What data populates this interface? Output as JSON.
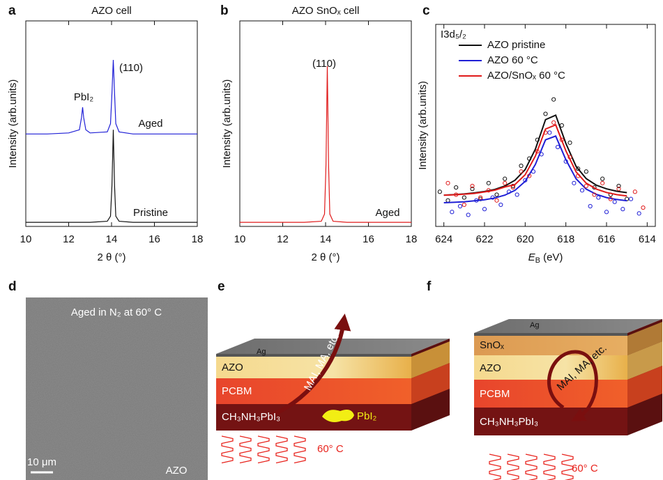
{
  "panel_labels": [
    "a",
    "b",
    "c",
    "d",
    "e",
    "f"
  ],
  "chart_data": [
    {
      "type": "line",
      "title": "AZO cell",
      "xlabel": "2 θ (°)",
      "ylabel": "Intensity (arb.units)",
      "xlim": [
        10,
        18
      ],
      "xticks": [
        10,
        12,
        14,
        16,
        18
      ],
      "ylim": [
        0,
        100
      ],
      "annotations": [
        "PbI₂",
        "(110)",
        "Aged",
        "Pristine"
      ],
      "series": [
        {
          "color": "#1f1fd6",
          "x": [
            10,
            11,
            12,
            12.5,
            12.6,
            12.65,
            12.7,
            12.8,
            13,
            13.8,
            13.95,
            14.02,
            14.08,
            14.14,
            14.2,
            14.35,
            15,
            16,
            17,
            18
          ],
          "values": [
            45,
            45,
            45.5,
            47,
            53,
            58,
            53,
            47,
            45.5,
            46,
            50,
            65,
            81,
            65,
            50,
            46,
            45,
            45,
            45,
            45
          ]
        },
        {
          "color": "#111111",
          "x": [
            10,
            11,
            12,
            13,
            13.8,
            13.95,
            14.02,
            14.08,
            14.14,
            14.2,
            14.35,
            15,
            16,
            17,
            18
          ],
          "values": [
            2,
            2,
            2,
            2,
            2.5,
            5,
            20,
            47,
            20,
            5,
            2.5,
            2,
            2,
            2,
            2
          ]
        }
      ]
    },
    {
      "type": "line",
      "title": "AZO SnOₓ cell",
      "xlabel": "2 θ (°)",
      "ylabel": "Intensity (arb.units)",
      "xlim": [
        10,
        18
      ],
      "xticks": [
        10,
        12,
        14,
        16,
        18
      ],
      "ylim": [
        0,
        100
      ],
      "annotations": [
        "(110)",
        "Aged"
      ],
      "series": [
        {
          "color": "#e01a1a",
          "x": [
            10,
            11,
            12,
            13,
            13.8,
            13.95,
            14.02,
            14.08,
            14.14,
            14.2,
            14.35,
            15,
            16,
            17,
            18
          ],
          "values": [
            2,
            2,
            2,
            2,
            2.5,
            6,
            30,
            78,
            30,
            6,
            2.5,
            2,
            2,
            2,
            2
          ]
        }
      ]
    },
    {
      "type": "scatter",
      "xlabel": [
        "E",
        "B",
        " (eV)"
      ],
      "ylabel": "Intensity (arb.units)",
      "xlim": [
        624.4,
        613.6
      ],
      "xticks": [
        624,
        622,
        620,
        618,
        616,
        614
      ],
      "ylim": [
        0,
        140
      ],
      "annotations": [
        "I3d₅/₂"
      ],
      "fit_x": [
        624,
        623.5,
        623,
        622.5,
        622,
        621.5,
        621,
        620.5,
        620,
        619.5,
        619,
        618.5,
        618,
        617.5,
        617,
        616.5,
        616,
        615.5,
        615
      ],
      "series": [
        {
          "name": "AZO pristine",
          "color": "#111111",
          "x": [
            624.2,
            623.8,
            623.4,
            623.0,
            622.6,
            622.2,
            621.8,
            621.4,
            621.0,
            620.6,
            620.2,
            619.8,
            619.4,
            619.0,
            618.6,
            618.2,
            617.8,
            617.4,
            617.0,
            616.6,
            616.2,
            615.8,
            615.4,
            615.0
          ],
          "values": [
            24,
            18,
            27,
            20,
            26,
            19,
            30,
            22,
            33,
            28,
            42,
            47,
            60,
            78,
            88,
            70,
            58,
            40,
            38,
            27,
            33,
            22,
            28,
            19
          ],
          "fit": [
            21.7,
            22.0,
            22.5,
            23.2,
            24.2,
            25.6,
            28.0,
            32.0,
            39.4,
            53.5,
            74.0,
            77.1,
            57.5,
            41.6,
            33.1,
            28.6,
            26.0,
            24.4,
            23.4
          ]
        },
        {
          "name": "AZO 60 °C",
          "color": "#1f1fd6",
          "x": [
            623.6,
            623.2,
            622.8,
            622.4,
            622.0,
            621.6,
            621.2,
            620.8,
            620.4,
            620.0,
            619.6,
            619.2,
            618.8,
            618.4,
            618.0,
            617.6,
            617.2,
            616.8,
            616.4,
            616.0,
            615.6,
            615.2,
            614.8,
            614.4
          ],
          "values": [
            10,
            14,
            8,
            18,
            12,
            20,
            15,
            24,
            22,
            32,
            38,
            50,
            65,
            55,
            45,
            30,
            25,
            14,
            20,
            10,
            17,
            12,
            19,
            9
          ],
          "fit": [
            16.4,
            16.7,
            17.1,
            17.7,
            18.5,
            19.7,
            21.7,
            25.0,
            31.2,
            42.9,
            60.0,
            62.6,
            46.2,
            33.0,
            25.9,
            22.2,
            20.0,
            18.7,
            17.8
          ]
        },
        {
          "name": "AZO/SnOₓ 60 °C",
          "color": "#e01a1a",
          "x": [
            623.8,
            623.4,
            623.0,
            622.6,
            622.2,
            621.8,
            621.4,
            621.0,
            620.6,
            620.2,
            619.8,
            619.4,
            619.0,
            618.6,
            618.2,
            617.8,
            617.4,
            617.0,
            616.6,
            616.2,
            615.8,
            615.4,
            614.6,
            614.2
          ],
          "values": [
            30,
            22,
            15,
            28,
            20,
            25,
            18,
            30,
            27,
            38,
            35,
            52,
            65,
            72,
            60,
            48,
            35,
            28,
            22,
            30,
            19,
            26,
            24,
            13
          ],
          "fit": [
            21.6,
            21.9,
            22.3,
            22.9,
            23.9,
            25.1,
            27.3,
            29.0,
            35.8,
            48.7,
            67.5,
            70.4,
            52.4,
            37.8,
            30.0,
            25.9,
            23.5,
            22.0,
            21.1
          ]
        }
      ]
    }
  ],
  "sem_image": {
    "caption": "Aged in N₂ at 60° C",
    "scale_bar": "10 μm",
    "label": "AZO"
  },
  "diagram_e": {
    "layers": [
      "Ag",
      "AZO",
      "PCBM",
      "CH₃NH₃PbI₃"
    ],
    "product": "PbI₂",
    "migration": "MAI, MA, etc.",
    "temperature": "60° C"
  },
  "diagram_f": {
    "layers": [
      "Ag",
      "SnOₓ",
      "AZO",
      "PCBM",
      "CH₃NH₃PbI₃"
    ],
    "migration": "MAI, MA, etc.",
    "temperature": "60° C"
  }
}
